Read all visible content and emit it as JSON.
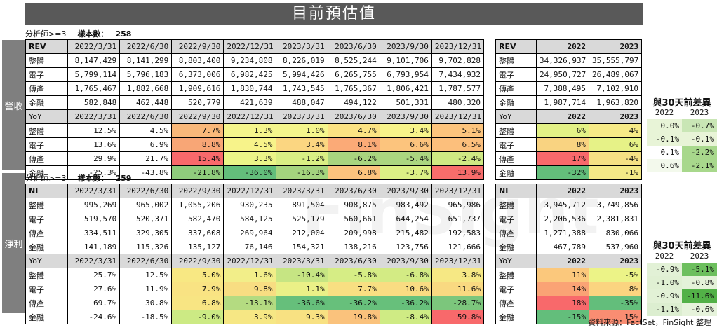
{
  "title": "目前預估值",
  "footer": "資料來源：FactSet，FinSight 整理",
  "watermark": "FinSight",
  "revenue": {
    "side_label": "營收",
    "analyst_label": "分析師>=3",
    "sample_label": "樣本數：",
    "sample_value": "258",
    "level_header": [
      "REV",
      "2022/3/31",
      "2022/6/30",
      "2022/9/30",
      "2022/12/31",
      "2023/3/31",
      "2023/6/30",
      "2023/9/30",
      "2023/12/31"
    ],
    "level_rows": [
      [
        "整體",
        "8,147,429",
        "8,141,299",
        "8,803,400",
        "9,234,808",
        "8,226,019",
        "8,525,244",
        "9,101,706",
        "9,702,828"
      ],
      [
        "電子",
        "5,799,114",
        "5,796,183",
        "6,373,006",
        "6,982,425",
        "5,994,426",
        "6,265,755",
        "6,793,954",
        "7,434,932"
      ],
      [
        "傳產",
        "1,765,467",
        "1,882,668",
        "1,909,616",
        "1,830,744",
        "1,743,545",
        "1,765,367",
        "1,806,421",
        "1,787,577"
      ],
      [
        "金融",
        "582,848",
        "462,448",
        "520,779",
        "421,639",
        "488,047",
        "494,122",
        "501,331",
        "480,320"
      ]
    ],
    "yoy_header": [
      "YoY",
      "2022/3/31",
      "2022/6/30",
      "2022/9/30",
      "2022/12/31",
      "2023/3/31",
      "2023/6/30",
      "2023/9/30",
      "2023/12/31"
    ],
    "yoy_rows": [
      [
        "整體",
        "12.5%",
        "4.5%",
        "7.7%",
        "1.3%",
        "1.0%",
        "4.7%",
        "3.4%",
        "5.1%"
      ],
      [
        "電子",
        "13.6%",
        "6.9%",
        "8.8%",
        "4.5%",
        "3.4%",
        "8.1%",
        "6.6%",
        "6.5%"
      ],
      [
        "傳產",
        "29.9%",
        "21.7%",
        "15.4%",
        "3.3%",
        "-1.2%",
        "-6.2%",
        "-5.4%",
        "-2.4%"
      ],
      [
        "金融",
        "-25.3%",
        "-43.8%",
        "-21.8%",
        "-36.0%",
        "-16.3%",
        "6.8%",
        "-3.7%",
        "13.9%"
      ]
    ],
    "yoy_colors": [
      [
        "",
        "",
        "#f9b87a",
        "#f4f58c",
        "#f4f58c",
        "#fbe283",
        "#f7f38a",
        "#fcc47d"
      ],
      [
        "",
        "",
        "#f8a676",
        "#f7f38a",
        "#fbd681",
        "#fbaa77",
        "#fcc47d",
        "#fcbf7c"
      ],
      [
        "",
        "",
        "#f8696b",
        "#ebf588",
        "#d9ef84",
        "#a9d57f",
        "#abd680",
        "#cfe983"
      ],
      [
        "",
        "",
        "#8fcc7c",
        "#63be7b",
        "#a4d47e",
        "#fcc47d",
        "#dcf085",
        "#f86d6b"
      ]
    ],
    "annual_header": [
      "REV",
      "2022",
      "2023"
    ],
    "annual_rows": [
      [
        "整體",
        "34,326,937",
        "35,555,797"
      ],
      [
        "電子",
        "24,950,727",
        "26,489,067"
      ],
      [
        "傳產",
        "7,388,495",
        "7,102,910"
      ],
      [
        "金融",
        "1,987,714",
        "1,963,820"
      ]
    ],
    "annual_yoy_header": [
      "YoY",
      "2022",
      "2023"
    ],
    "annual_yoy_rows": [
      [
        "整體",
        "6%",
        "4%"
      ],
      [
        "電子",
        "8%",
        "6%"
      ],
      [
        "傳產",
        "17%",
        "-4%"
      ],
      [
        "金融",
        "-32%",
        "-1%"
      ]
    ],
    "annual_yoy_colors": [
      [
        "#e3f186",
        "#f6ea87"
      ],
      [
        "#f9d381",
        "#e6f287"
      ],
      [
        "#f8696b",
        "#f5e084"
      ],
      [
        "#63be7b",
        "#f4e987"
      ]
    ],
    "diff_title": "與30天前差異",
    "diff_header": [
      "2022",
      "2023"
    ],
    "diff_rows": [
      [
        "0.0%",
        "-0.7%"
      ],
      [
        "-0.1%",
        "-0.1%"
      ],
      [
        "0.1%",
        "-2.2%"
      ],
      [
        "0.6%",
        "-2.1%"
      ]
    ],
    "diff_colors": [
      [
        "#e8f4d7",
        "#c9e6b5"
      ],
      [
        "#e8f4d7",
        "#e8f4d7"
      ],
      [
        "#ffffff",
        "#a8d88c"
      ],
      [
        "#f3f9ec",
        "#a8d88c"
      ]
    ]
  },
  "income": {
    "side_label": "淨利",
    "analyst_label": "分析師>=3",
    "sample_label": "樣本數：",
    "sample_value": "259",
    "level_header": [
      "NI",
      "2022/3/31",
      "2022/6/30",
      "2022/9/30",
      "2022/12/31",
      "2023/3/31",
      "2023/6/30",
      "2023/9/30",
      "2023/12/31"
    ],
    "level_rows": [
      [
        "整體",
        "995,269",
        "965,002",
        "1,055,206",
        "930,235",
        "891,504",
        "908,875",
        "983,492",
        "965,986"
      ],
      [
        "電子",
        "519,570",
        "520,371",
        "582,470",
        "584,125",
        "525,179",
        "560,661",
        "644,254",
        "651,737"
      ],
      [
        "傳產",
        "334,511",
        "329,305",
        "337,608",
        "269,964",
        "212,004",
        "209,998",
        "215,482",
        "192,583"
      ],
      [
        "金融",
        "141,189",
        "115,326",
        "135,127",
        "76,146",
        "154,321",
        "138,216",
        "123,756",
        "121,666"
      ]
    ],
    "yoy_header": [
      "YoY",
      "2022/3/31",
      "2022/6/30",
      "2022/9/30",
      "2022/12/31",
      "2023/3/31",
      "2023/6/30",
      "2023/9/30",
      "2023/12/31"
    ],
    "yoy_rows": [
      [
        "整體",
        "25.7%",
        "12.5%",
        "5.0%",
        "1.6%",
        "-10.4%",
        "-5.8%",
        "-6.8%",
        "3.8%"
      ],
      [
        "電子",
        "27.6%",
        "11.9%",
        "7.9%",
        "9.8%",
        "1.1%",
        "7.7%",
        "10.6%",
        "11.6%"
      ],
      [
        "傳產",
        "69.7%",
        "30.8%",
        "6.8%",
        "-13.1%",
        "-36.6%",
        "-36.2%",
        "-36.2%",
        "-28.7%"
      ],
      [
        "金融",
        "-24.6%",
        "-18.5%",
        "-9.0%",
        "3.9%",
        "9.3%",
        "19.8%",
        "-8.4%",
        "59.8%"
      ]
    ],
    "yoy_colors": [
      [
        "",
        "",
        "#f8e883",
        "#f2ee89",
        "#c6e583",
        "#d6ed85",
        "#d3eb84",
        "#f6e884"
      ],
      [
        "",
        "",
        "#f9e383",
        "#f8dd82",
        "#eaf087",
        "#f8df82",
        "#f9dc82",
        "#f9d981"
      ],
      [
        "",
        "",
        "#f8e583",
        "#b4db81",
        "#66bf7b",
        "#67c07b",
        "#67c07b",
        "#7cc67c"
      ],
      [
        "",
        "",
        "#ccea84",
        "#f6e784",
        "#f8e182",
        "#fac27c",
        "#cfeb84",
        "#f8696b"
      ]
    ],
    "annual_header": [
      "NI",
      "2022",
      "2023"
    ],
    "annual_rows": [
      [
        "整體",
        "3,945,712",
        "3,749,856"
      ],
      [
        "電子",
        "2,206,536",
        "2,381,831"
      ],
      [
        "傳產",
        "1,271,388",
        "830,066"
      ],
      [
        "金融",
        "467,789",
        "537,960"
      ]
    ],
    "annual_yoy_header": [
      "YoY",
      "2022",
      "2023"
    ],
    "annual_yoy_rows": [
      [
        "整體",
        "11%",
        "-5%"
      ],
      [
        "電子",
        "14%",
        "8%"
      ],
      [
        "傳產",
        "18%",
        "-35%"
      ],
      [
        "金融",
        "-15%",
        "15%"
      ]
    ],
    "annual_yoy_colors": [
      [
        "#fbc87c",
        "#ecf387"
      ],
      [
        "#faa375",
        "#fbd480"
      ],
      [
        "#f8696b",
        "#63be7b"
      ],
      [
        "#63be7b",
        "#f98d72"
      ]
    ],
    "diff_title": "與30天前差異",
    "diff_header": [
      "2022",
      "2023"
    ],
    "diff_rows": [
      [
        "-0.9%",
        "-5.1%"
      ],
      [
        "-1.0%",
        "-0.8%"
      ],
      [
        "-0.9%",
        "-11.6%"
      ],
      [
        "-1.1%",
        "-0.6%"
      ]
    ],
    "diff_colors": [
      [
        "#e2f1d6",
        "#6dbf5e"
      ],
      [
        "#e0f0d3",
        "#e4f2d9"
      ],
      [
        "#e2f1d6",
        "#52b147"
      ],
      [
        "#dceed0",
        "#e6f3db"
      ]
    ]
  }
}
